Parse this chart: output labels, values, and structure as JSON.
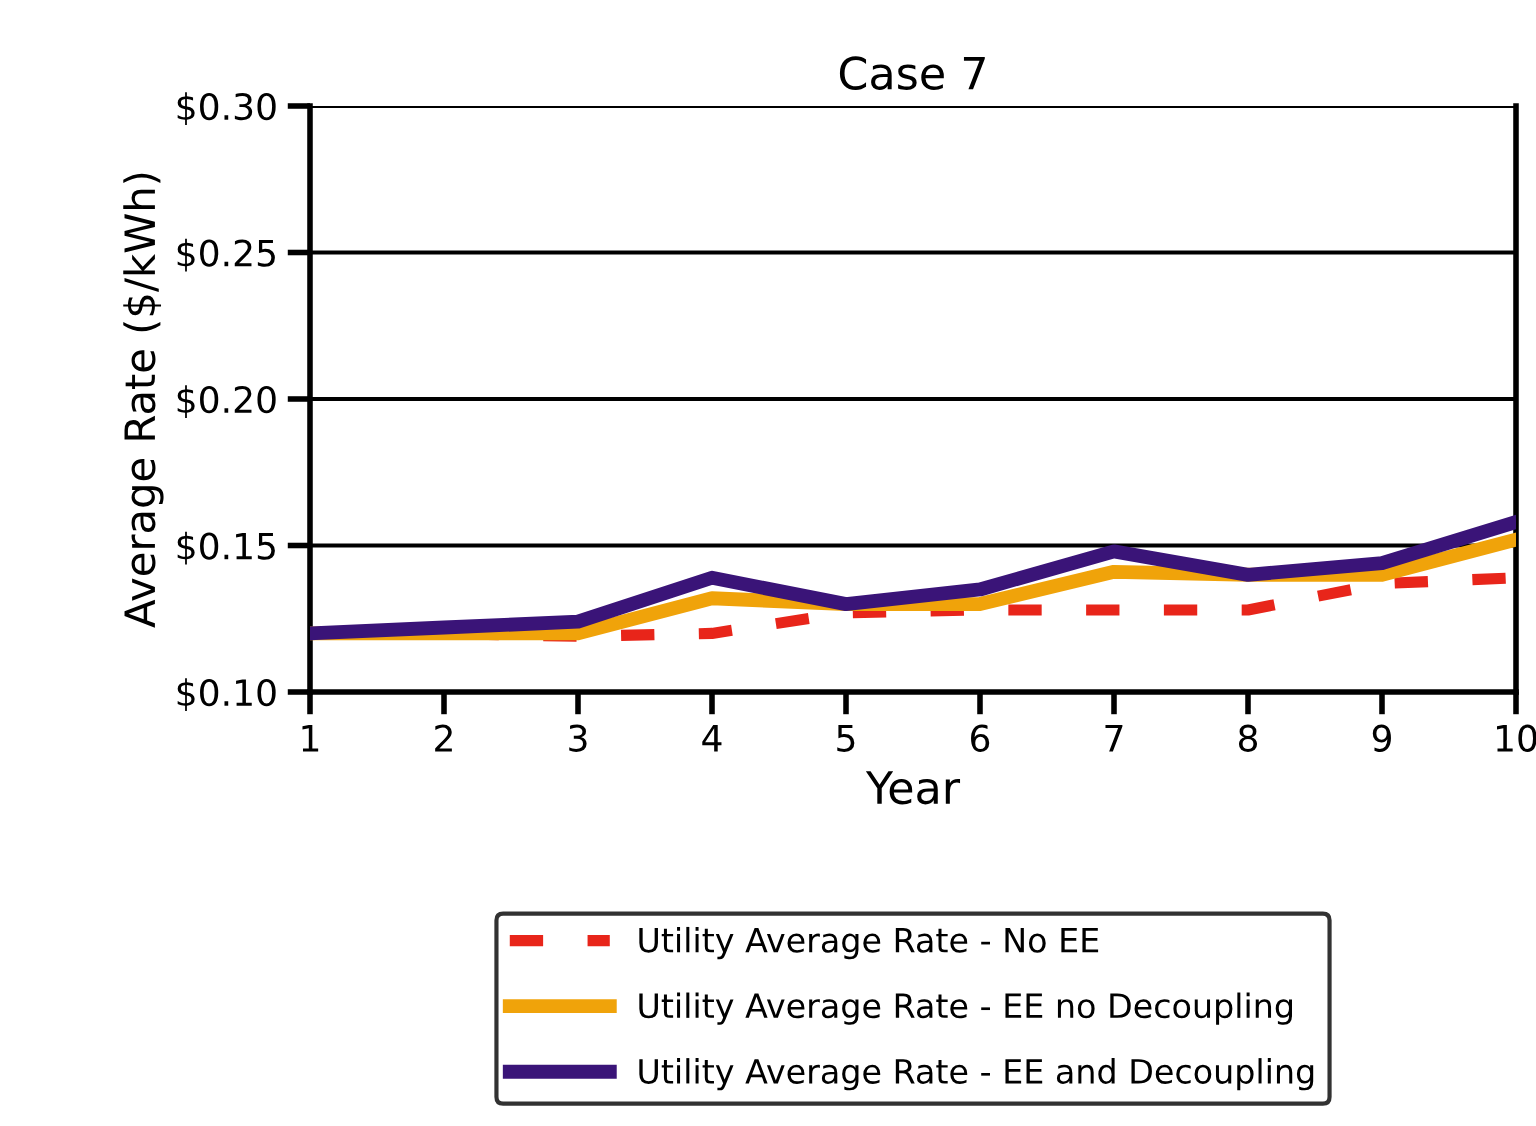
{
  "chart_data": {
    "type": "line",
    "title": "Case 7",
    "xlabel": "Year",
    "ylabel": "Average Rate ($/kWh)",
    "x": [
      1,
      2,
      3,
      4,
      5,
      6,
      7,
      8,
      9,
      10
    ],
    "series": [
      {
        "name": "Utility Average Rate - No EE",
        "color": "#e8251a",
        "line_style": "dashed",
        "values": [
          0.12,
          0.12,
          0.119,
          0.12,
          0.127,
          0.128,
          0.128,
          0.128,
          0.137,
          0.139
        ]
      },
      {
        "name": "Utility Average Rate - EE no Decoupling",
        "color": "#f0a30a",
        "line_style": "solid",
        "values": [
          0.12,
          0.12,
          0.12,
          0.132,
          0.13,
          0.13,
          0.141,
          0.14,
          0.14,
          0.152
        ]
      },
      {
        "name": "Utility Average Rate - EE and Decoupling",
        "color": "#3a1478",
        "line_style": "solid",
        "values": [
          0.12,
          0.122,
          0.124,
          0.139,
          0.13,
          0.135,
          0.148,
          0.14,
          0.144,
          0.158
        ]
      }
    ],
    "xlim": [
      1,
      10
    ],
    "xticks": [
      1,
      2,
      3,
      4,
      5,
      6,
      7,
      8,
      9,
      10
    ],
    "ylim": [
      0.1,
      0.3
    ],
    "yticks": [
      {
        "value": 0.1,
        "label": "$0.10"
      },
      {
        "value": 0.15,
        "label": "$0.15"
      },
      {
        "value": 0.2,
        "label": "$0.20"
      },
      {
        "value": 0.25,
        "label": "$0.25"
      },
      {
        "value": 0.3,
        "label": "$0.30"
      }
    ],
    "grid": "y",
    "legend": "bottom",
    "marker": "none"
  }
}
